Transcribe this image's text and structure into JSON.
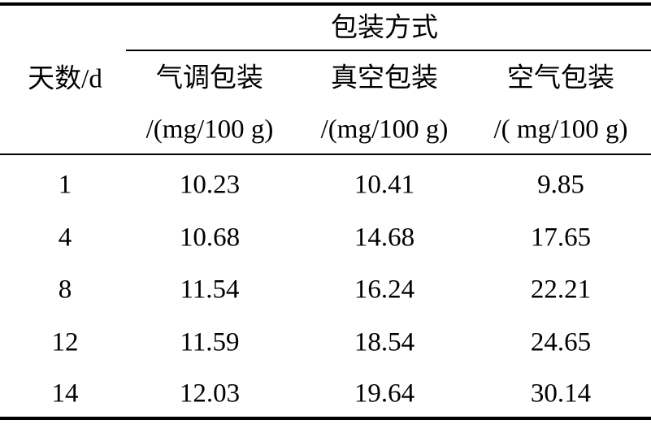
{
  "table": {
    "group_header": "包装方式",
    "row_header": "天数/d",
    "columns": [
      {
        "name": "气调包装",
        "unit": "/(mg/100 g)"
      },
      {
        "name": "真空包装",
        "unit": "/(mg/100 g)"
      },
      {
        "name": "空气包装",
        "unit": "/( mg/100 g)"
      }
    ],
    "rows": [
      [
        "1",
        "10.23",
        "10.41",
        "9.85"
      ],
      [
        "4",
        "10.68",
        "14.68",
        "17.65"
      ],
      [
        "8",
        "11.54",
        "16.24",
        "22.21"
      ],
      [
        "12",
        "11.59",
        "18.54",
        "24.65"
      ],
      [
        "14",
        "12.03",
        "19.64",
        "30.14"
      ]
    ]
  }
}
